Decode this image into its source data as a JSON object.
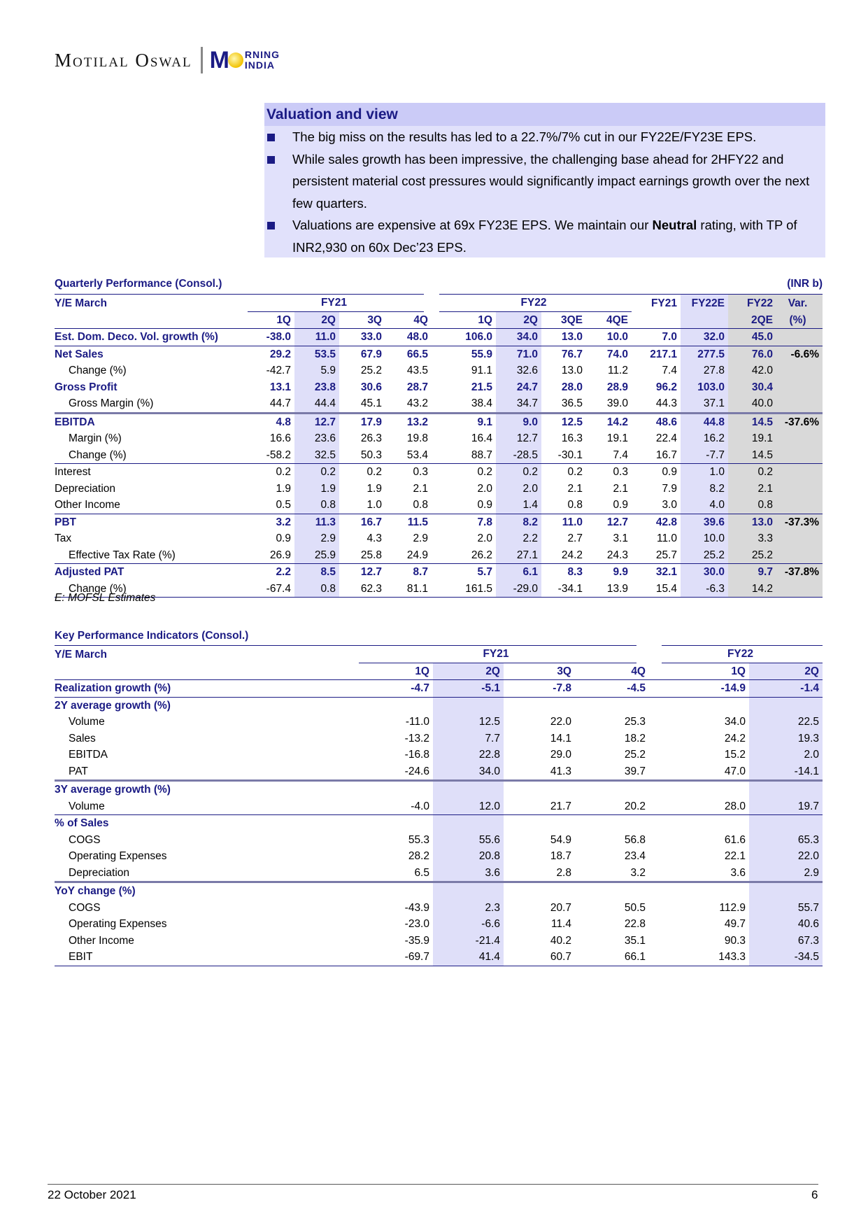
{
  "logo": {
    "brand": "Motilal Oswal",
    "product_m": "M",
    "product_top": "RNING",
    "product_bottom": "INDIA"
  },
  "valuation": {
    "title": "Valuation and view",
    "bullets": [
      "The big miss on the results has led to a 22.7%/7% cut in our FY22E/FY23E EPS.",
      "While sales growth has been impressive, the challenging base ahead for 2HFY22 and persistent material cost pressures would significantly impact earnings growth over the next few quarters."
    ],
    "bullet3_pre": "Valuations are expensive at 69x FY23E EPS. We maintain our ",
    "bullet3_bold": "Neutral",
    "bullet3_post": " rating, with TP of INR2,930 on 60x Dec’23 EPS."
  },
  "quarterly": {
    "title": "Quarterly Performance (Consol.)",
    "unit": "(INR b)",
    "header_label": "Y/E March",
    "group1": "FY21",
    "group2": "FY22",
    "col_fy21": "FY21",
    "col_fy22e": "FY22E",
    "col_fy22": "FY22",
    "col_var": "Var.",
    "sub": [
      "1Q",
      "2Q",
      "3Q",
      "4Q",
      "1Q",
      "2Q",
      "3QE",
      "4QE",
      "",
      "",
      "2QE",
      "(%)"
    ],
    "rows": [
      {
        "label": "Est. Dom. Deco. Vol. growth (%)",
        "bold": true,
        "border": "",
        "v": [
          "-38.0",
          "11.0",
          "33.0",
          "48.0",
          "106.0",
          "34.0",
          "13.0",
          "10.0",
          "7.0",
          "32.0",
          "45.0",
          ""
        ]
      },
      {
        "label": "Net Sales",
        "bold": true,
        "border": "t",
        "v": [
          "29.2",
          "53.5",
          "67.9",
          "66.5",
          "55.9",
          "71.0",
          "76.7",
          "74.0",
          "217.1",
          "277.5",
          "76.0",
          "-6.6%"
        ]
      },
      {
        "label": "Change (%)",
        "indent": true,
        "v": [
          "-42.7",
          "5.9",
          "25.2",
          "43.5",
          "91.1",
          "32.6",
          "13.0",
          "11.2",
          "7.4",
          "27.8",
          "42.0",
          ""
        ]
      },
      {
        "label": "Gross Profit",
        "bold": true,
        "v": [
          "13.1",
          "23.8",
          "30.6",
          "28.7",
          "21.5",
          "24.7",
          "28.0",
          "28.9",
          "96.2",
          "103.0",
          "30.4",
          ""
        ]
      },
      {
        "label": "Gross Margin (%)",
        "indent": true,
        "v": [
          "44.7",
          "44.4",
          "45.1",
          "43.2",
          "38.4",
          "34.7",
          "36.5",
          "39.0",
          "44.3",
          "37.1",
          "40.0",
          ""
        ]
      },
      {
        "label": "EBITDA",
        "bold": true,
        "border": "g",
        "v": [
          "4.8",
          "12.7",
          "17.9",
          "13.2",
          "9.1",
          "9.0",
          "12.5",
          "14.2",
          "48.6",
          "44.8",
          "14.5",
          "-37.6%"
        ]
      },
      {
        "label": "Margin (%)",
        "indent": true,
        "v": [
          "16.6",
          "23.6",
          "26.3",
          "19.8",
          "16.4",
          "12.7",
          "16.3",
          "19.1",
          "22.4",
          "16.2",
          "19.1",
          ""
        ]
      },
      {
        "label": "Change (%)",
        "indent": true,
        "v": [
          "-58.2",
          "32.5",
          "50.3",
          "53.4",
          "88.7",
          "-28.5",
          "-30.1",
          "7.4",
          "16.7",
          "-7.7",
          "14.5",
          ""
        ]
      },
      {
        "label": "Interest",
        "border": "t",
        "v": [
          "0.2",
          "0.2",
          "0.2",
          "0.3",
          "0.2",
          "0.2",
          "0.2",
          "0.3",
          "0.9",
          "1.0",
          "0.2",
          ""
        ]
      },
      {
        "label": "Depreciation",
        "v": [
          "1.9",
          "1.9",
          "1.9",
          "2.1",
          "2.0",
          "2.0",
          "2.1",
          "2.1",
          "7.9",
          "8.2",
          "2.1",
          ""
        ]
      },
      {
        "label": "Other Income",
        "v": [
          "0.5",
          "0.8",
          "1.0",
          "0.8",
          "0.9",
          "1.4",
          "0.8",
          "0.9",
          "3.0",
          "4.0",
          "0.8",
          ""
        ]
      },
      {
        "label": "PBT",
        "bold": true,
        "border": "t",
        "v": [
          "3.2",
          "11.3",
          "16.7",
          "11.5",
          "7.8",
          "8.2",
          "11.0",
          "12.7",
          "42.8",
          "39.6",
          "13.0",
          "-37.3%"
        ]
      },
      {
        "label": "Tax",
        "v": [
          "0.9",
          "2.9",
          "4.3",
          "2.9",
          "2.0",
          "2.2",
          "2.7",
          "3.1",
          "11.0",
          "10.0",
          "3.3",
          ""
        ]
      },
      {
        "label": "Effective Tax Rate (%)",
        "indent": true,
        "v": [
          "26.9",
          "25.9",
          "25.8",
          "24.9",
          "26.2",
          "27.1",
          "24.2",
          "24.3",
          "25.7",
          "25.2",
          "25.2",
          ""
        ]
      },
      {
        "label": "Adjusted PAT",
        "bold": true,
        "border": "t",
        "v": [
          "2.2",
          "8.5",
          "12.7",
          "8.7",
          "5.7",
          "6.1",
          "8.3",
          "9.9",
          "32.1",
          "30.0",
          "9.7",
          "-37.8%"
        ]
      },
      {
        "label": "Change (%)",
        "indent": true,
        "v": [
          "-67.4",
          "0.8",
          "62.3",
          "81.1",
          "161.5",
          "-29.0",
          "-34.1",
          "13.9",
          "15.4",
          "-6.3",
          "14.2",
          ""
        ]
      }
    ],
    "note": "E: MOFSL Estimates"
  },
  "kpi": {
    "title": "Key Performance Indicators (Consol.)",
    "header_label": "Y/E March",
    "group1": "FY21",
    "group2": "FY22",
    "sub": [
      "1Q",
      "2Q",
      "3Q",
      "4Q",
      "1Q",
      "2Q"
    ],
    "rows": [
      {
        "label": "Realization growth (%)",
        "bold": true,
        "v": [
          "-4.7",
          "-5.1",
          "-7.8",
          "-4.5",
          "-14.9",
          "-1.4"
        ]
      },
      {
        "label": "2Y average growth (%)",
        "section": true,
        "border": "t",
        "v": [
          "",
          "",
          "",
          "",
          "",
          ""
        ]
      },
      {
        "label": "Volume",
        "indent": true,
        "v": [
          "-11.0",
          "12.5",
          "22.0",
          "25.3",
          "34.0",
          "22.5"
        ]
      },
      {
        "label": "Sales",
        "indent": true,
        "v": [
          "-13.2",
          "7.7",
          "14.1",
          "18.2",
          "24.2",
          "19.3"
        ]
      },
      {
        "label": "EBITDA",
        "indent": true,
        "v": [
          "-16.8",
          "22.8",
          "29.0",
          "25.2",
          "15.2",
          "2.0"
        ]
      },
      {
        "label": "PAT",
        "indent": true,
        "v": [
          "-24.6",
          "34.0",
          "41.3",
          "39.7",
          "47.0",
          "-14.1"
        ]
      },
      {
        "label": "3Y average growth (%)",
        "section": true,
        "border": "g",
        "v": [
          "",
          "",
          "",
          "",
          "",
          ""
        ]
      },
      {
        "label": "Volume",
        "indent": true,
        "v": [
          "-4.0",
          "12.0",
          "21.7",
          "20.2",
          "28.0",
          "19.7"
        ]
      },
      {
        "label": "% of Sales",
        "section": true,
        "border": "t",
        "v": [
          "",
          "",
          "",
          "",
          "",
          ""
        ]
      },
      {
        "label": "COGS",
        "indent": true,
        "v": [
          "55.3",
          "55.6",
          "54.9",
          "56.8",
          "61.6",
          "65.3"
        ]
      },
      {
        "label": "Operating Expenses",
        "indent": true,
        "v": [
          "28.2",
          "20.8",
          "18.7",
          "23.4",
          "22.1",
          "22.0"
        ]
      },
      {
        "label": "Depreciation",
        "indent": true,
        "v": [
          "6.5",
          "3.6",
          "2.8",
          "3.2",
          "3.6",
          "2.9"
        ]
      },
      {
        "label": "YoY change (%)",
        "section": true,
        "border": "g",
        "v": [
          "",
          "",
          "",
          "",
          "",
          ""
        ]
      },
      {
        "label": "COGS",
        "indent": true,
        "v": [
          "-43.9",
          "2.3",
          "20.7",
          "50.5",
          "112.9",
          "55.7"
        ]
      },
      {
        "label": "Operating Expenses",
        "indent": true,
        "v": [
          "-23.0",
          "-6.6",
          "11.4",
          "22.8",
          "49.7",
          "40.6"
        ]
      },
      {
        "label": "Other Income",
        "indent": true,
        "v": [
          "-35.9",
          "-21.4",
          "40.2",
          "35.1",
          "90.3",
          "67.3"
        ]
      },
      {
        "label": "EBIT",
        "indent": true,
        "v": [
          "-69.7",
          "41.4",
          "60.7",
          "66.1",
          "143.3",
          "-34.5"
        ]
      }
    ]
  },
  "footer": {
    "date": "22 October 2021",
    "page": "6"
  }
}
